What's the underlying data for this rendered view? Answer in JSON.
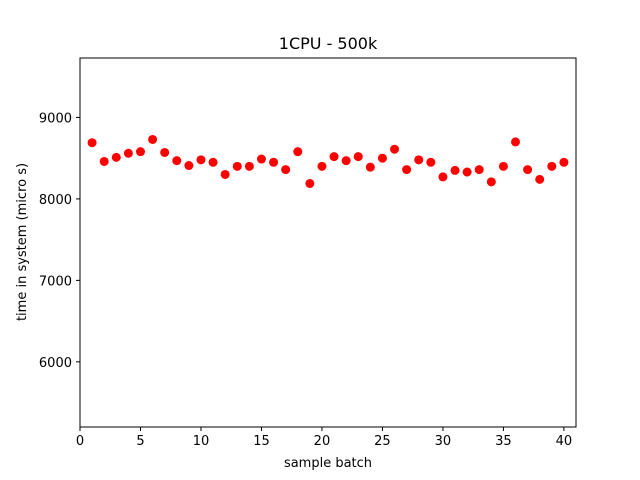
{
  "chart_data": {
    "type": "scatter",
    "title": "1CPU - 500k",
    "xlabel": "sample batch",
    "ylabel": "time in system (micro s)",
    "xlim": [
      0,
      41
    ],
    "ylim": [
      5200,
      9730
    ],
    "xticks": [
      0,
      5,
      10,
      15,
      20,
      25,
      30,
      35,
      40
    ],
    "yticks": [
      6000,
      7000,
      8000,
      9000
    ],
    "grid": false,
    "marker_color": "#ff0000",
    "series": [
      {
        "x": [
          1,
          2,
          3,
          4,
          5,
          6,
          7,
          8,
          9,
          10,
          11,
          12,
          13,
          14,
          15,
          16,
          17,
          18,
          19,
          20,
          21,
          22,
          23,
          24,
          25,
          26,
          27,
          28,
          29,
          30,
          31,
          32,
          33,
          34,
          35,
          36,
          37,
          38,
          39,
          40
        ],
        "y": [
          8690,
          8460,
          8510,
          8560,
          8580,
          8730,
          8570,
          8470,
          8410,
          8480,
          8450,
          8300,
          8400,
          8400,
          8490,
          8450,
          8360,
          8580,
          8190,
          8400,
          8520,
          8470,
          8520,
          8390,
          8500,
          8610,
          8360,
          8480,
          8450,
          8270,
          8350,
          8330,
          8360,
          8210,
          8400,
          8700,
          8360,
          8240,
          8400,
          8450
        ]
      }
    ]
  }
}
